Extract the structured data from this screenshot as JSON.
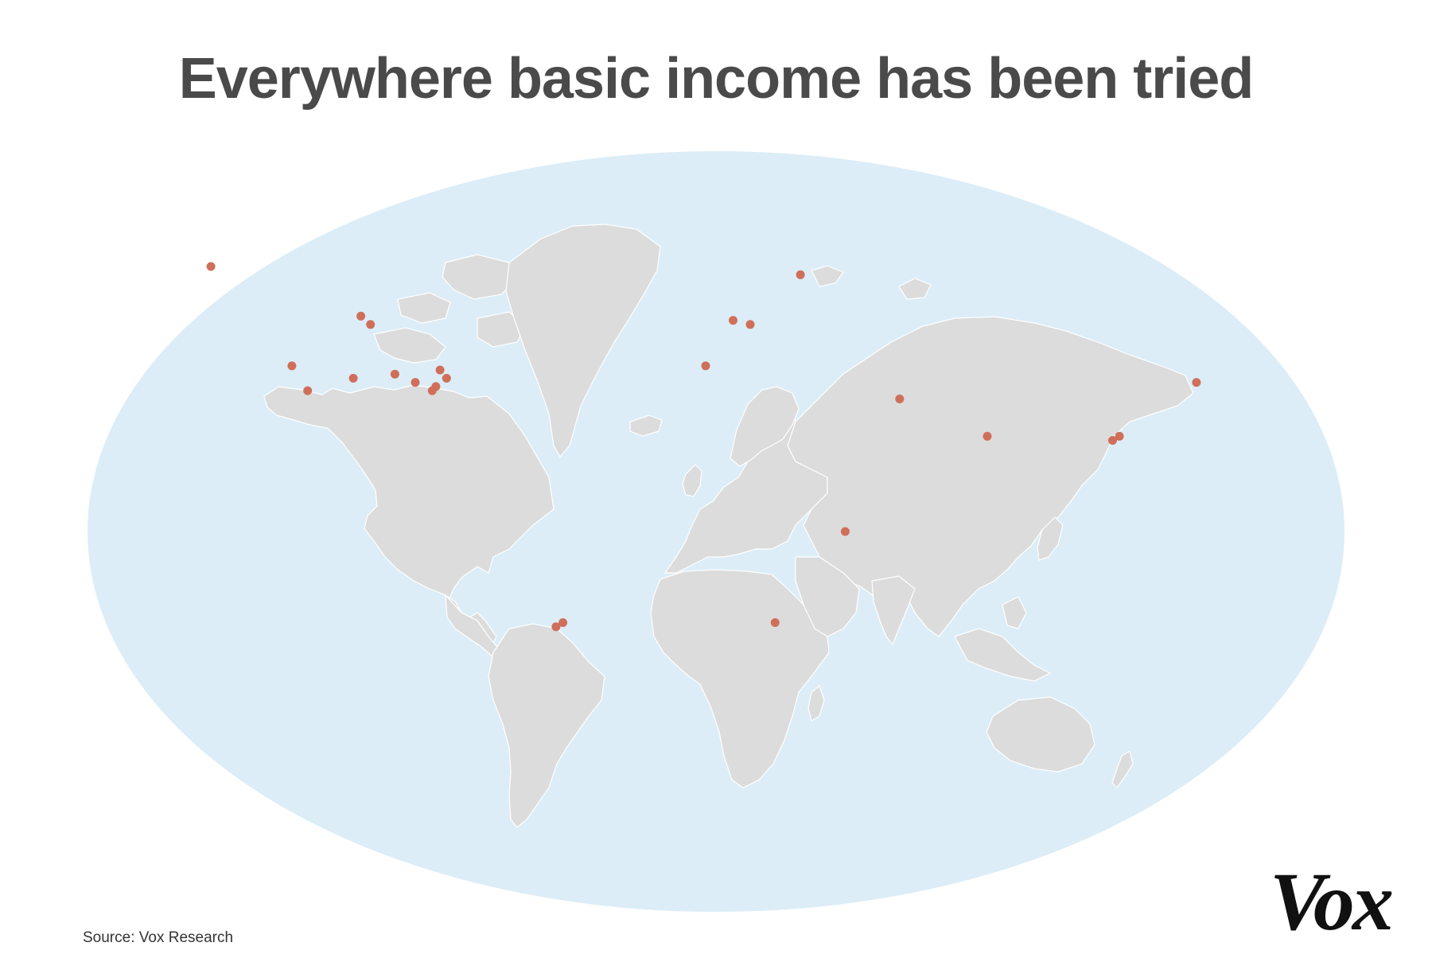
{
  "title": "Everywhere basic income has been tried",
  "source": "Source: Vox Research",
  "logo": "Vox",
  "colors": {
    "ocean": "#dcedf7",
    "land": "#dcdcdc",
    "border": "#ffffff",
    "marker": "#cf6f5a",
    "title": "#4a4a4a"
  },
  "map": {
    "projection": "oval world map",
    "markers": [
      {
        "lon": -150,
        "lat": 64
      },
      {
        "lon": -104,
        "lat": 52
      },
      {
        "lon": -101,
        "lat": 50
      },
      {
        "lon": -123,
        "lat": 40
      },
      {
        "lon": -118,
        "lat": 34
      },
      {
        "lon": -105,
        "lat": 37
      },
      {
        "lon": -93,
        "lat": 38
      },
      {
        "lon": -87,
        "lat": 36
      },
      {
        "lon": -80,
        "lat": 39
      },
      {
        "lon": -78,
        "lat": 37
      },
      {
        "lon": -81,
        "lat": 35
      },
      {
        "lon": -82,
        "lat": 34
      },
      {
        "lon": -3,
        "lat": 40
      },
      {
        "lon": 5,
        "lat": 51
      },
      {
        "lon": 10,
        "lat": 50
      },
      {
        "lon": 25,
        "lat": 62
      },
      {
        "lon": 53,
        "lat": 32
      },
      {
        "lon": 37,
        "lat": 0
      },
      {
        "lon": 17,
        "lat": -22
      },
      {
        "lon": 78,
        "lat": 23
      },
      {
        "lon": 114,
        "lat": 22
      },
      {
        "lon": 116,
        "lat": 23
      },
      {
        "lon": 139,
        "lat": 36
      },
      {
        "lon": -46,
        "lat": -23
      },
      {
        "lon": -44,
        "lat": -22
      }
    ]
  }
}
